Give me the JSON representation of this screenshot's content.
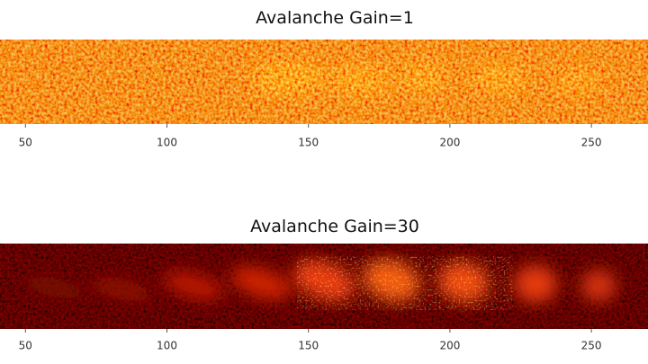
{
  "chart_data": [
    {
      "type": "heatmap",
      "title": "Avalanche Gain=1",
      "xlim": [
        41,
        270
      ],
      "xticks": [
        50,
        100,
        150,
        200,
        250
      ]
    },
    {
      "type": "heatmap",
      "title": "Avalanche Gain=30",
      "xlim": [
        41,
        270
      ],
      "xticks": [
        50,
        100,
        150,
        200,
        250
      ]
    }
  ]
}
